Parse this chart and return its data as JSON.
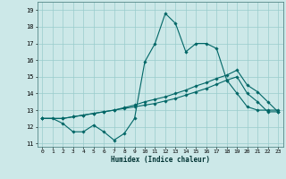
{
  "xlabel": "Humidex (Indice chaleur)",
  "bg_color": "#cce8e8",
  "grid_color": "#99cccc",
  "line_color": "#006666",
  "xlim": [
    -0.5,
    23.5
  ],
  "ylim": [
    10.8,
    19.5
  ],
  "yticks": [
    11,
    12,
    13,
    14,
    15,
    16,
    17,
    18,
    19
  ],
  "xticks": [
    0,
    1,
    2,
    3,
    4,
    5,
    6,
    7,
    8,
    9,
    10,
    11,
    12,
    13,
    14,
    15,
    16,
    17,
    18,
    19,
    20,
    21,
    22,
    23
  ],
  "line1_x": [
    0,
    1,
    2,
    3,
    4,
    5,
    6,
    7,
    8,
    9,
    10,
    11,
    12,
    13,
    14,
    15,
    16,
    17,
    18,
    19,
    20,
    21,
    22,
    23
  ],
  "line1_y": [
    12.5,
    12.5,
    12.2,
    11.7,
    11.7,
    12.1,
    11.7,
    11.2,
    11.6,
    12.5,
    15.9,
    17.0,
    18.8,
    18.2,
    16.5,
    17.0,
    17.0,
    16.7,
    14.8,
    14.0,
    13.2,
    13.0,
    13.0,
    13.0
  ],
  "line2_x": [
    0,
    2,
    3,
    4,
    5,
    6,
    7,
    8,
    9,
    10,
    11,
    12,
    13,
    14,
    15,
    16,
    17,
    18,
    19,
    20,
    21,
    22,
    23
  ],
  "line2_y": [
    12.5,
    12.5,
    12.6,
    12.7,
    12.8,
    12.9,
    13.0,
    13.15,
    13.3,
    13.5,
    13.65,
    13.8,
    14.0,
    14.2,
    14.45,
    14.65,
    14.9,
    15.1,
    15.4,
    14.5,
    14.1,
    13.5,
    12.9
  ],
  "line3_x": [
    0,
    2,
    3,
    4,
    5,
    6,
    7,
    8,
    9,
    10,
    11,
    12,
    13,
    14,
    15,
    16,
    17,
    18,
    19,
    20,
    21,
    22,
    23
  ],
  "line3_y": [
    12.5,
    12.5,
    12.6,
    12.7,
    12.8,
    12.9,
    13.0,
    13.1,
    13.2,
    13.3,
    13.4,
    13.55,
    13.7,
    13.9,
    14.1,
    14.3,
    14.55,
    14.8,
    15.0,
    14.0,
    13.5,
    12.9,
    12.9
  ]
}
